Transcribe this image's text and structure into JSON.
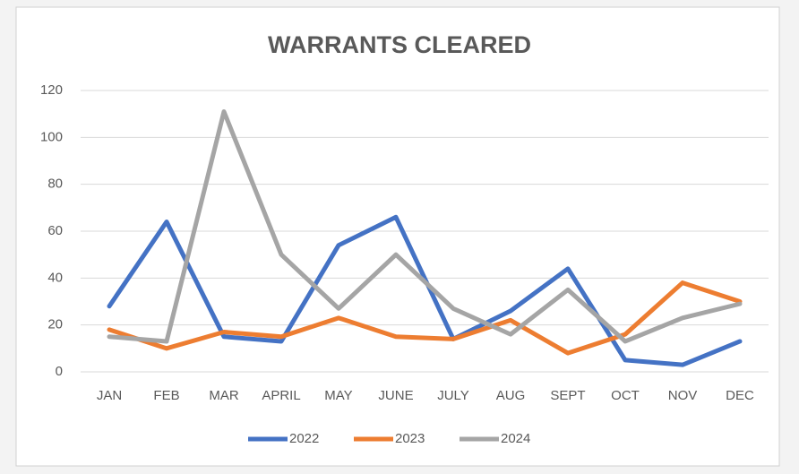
{
  "chart_data": {
    "type": "line",
    "title": "WARRANTS CLEARED",
    "categories": [
      "JAN",
      "FEB",
      "MAR",
      "APRIL",
      "MAY",
      "JUNE",
      "JULY",
      "AUG",
      "SEPT",
      "OCT",
      "NOV",
      "DEC"
    ],
    "series": [
      {
        "name": "2022",
        "color": "#4472c4",
        "values": [
          28,
          64,
          15,
          13,
          54,
          66,
          14,
          26,
          44,
          5,
          3,
          13
        ]
      },
      {
        "name": "2023",
        "color": "#ed7d31",
        "values": [
          18,
          10,
          17,
          15,
          23,
          15,
          14,
          22,
          8,
          16,
          38,
          30
        ]
      },
      {
        "name": "2024",
        "color": "#a5a5a5",
        "values": [
          15,
          13,
          111,
          50,
          27,
          50,
          27,
          16,
          35,
          13,
          23,
          29
        ]
      }
    ],
    "ylim": [
      0,
      120
    ],
    "yticks": [
      0,
      20,
      40,
      60,
      80,
      100,
      120
    ],
    "grid": true,
    "legend": "bottom"
  }
}
